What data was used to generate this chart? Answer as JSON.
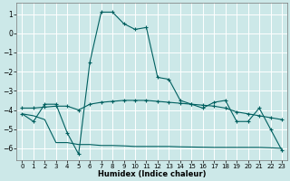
{
  "xlabel": "Humidex (Indice chaleur)",
  "xlim": [
    -0.5,
    23.5
  ],
  "ylim": [
    -6.6,
    1.6
  ],
  "yticks": [
    1,
    0,
    -1,
    -2,
    -3,
    -4,
    -5,
    -6
  ],
  "xticks": [
    0,
    1,
    2,
    3,
    4,
    5,
    6,
    7,
    8,
    9,
    10,
    11,
    12,
    13,
    14,
    15,
    16,
    17,
    18,
    19,
    20,
    21,
    22,
    23
  ],
  "bg_color": "#cce8e8",
  "grid_color": "#ffffff",
  "line_color": "#006060",
  "series1_x": [
    0,
    1,
    2,
    3,
    4,
    5,
    6,
    7,
    8,
    9,
    10,
    11,
    12,
    13,
    14,
    15,
    16,
    17,
    18,
    19,
    20,
    21,
    22,
    23
  ],
  "series1_y": [
    -4.2,
    -4.6,
    -3.7,
    -3.7,
    -5.2,
    -6.3,
    -1.5,
    1.1,
    1.1,
    0.5,
    0.2,
    0.3,
    -2.3,
    -2.4,
    -3.5,
    -3.7,
    -3.9,
    -3.6,
    -3.5,
    -4.6,
    -4.6,
    -3.9,
    -5.0,
    -6.1
  ],
  "series2_x": [
    0,
    1,
    2,
    3,
    4,
    5,
    6,
    7,
    8,
    9,
    10,
    11,
    12,
    13,
    14,
    15,
    16,
    17,
    18,
    19,
    20,
    21,
    22,
    23
  ],
  "series2_y": [
    -3.9,
    -3.9,
    -3.85,
    -3.8,
    -3.8,
    -4.0,
    -3.7,
    -3.6,
    -3.55,
    -3.5,
    -3.5,
    -3.5,
    -3.55,
    -3.6,
    -3.65,
    -3.7,
    -3.75,
    -3.8,
    -3.9,
    -4.1,
    -4.2,
    -4.3,
    -4.4,
    -4.5
  ],
  "series3_x": [
    0,
    1,
    2,
    3,
    4,
    5,
    6,
    7,
    8,
    9,
    10,
    11,
    12,
    13,
    14,
    15,
    16,
    17,
    18,
    19,
    20,
    21,
    22,
    23
  ],
  "series3_y": [
    -4.2,
    -4.3,
    -4.5,
    -5.7,
    -5.7,
    -5.8,
    -5.8,
    -5.85,
    -5.85,
    -5.87,
    -5.9,
    -5.9,
    -5.9,
    -5.9,
    -5.92,
    -5.93,
    -5.94,
    -5.95,
    -5.95,
    -5.95,
    -5.95,
    -5.95,
    -5.97,
    -6.0
  ]
}
